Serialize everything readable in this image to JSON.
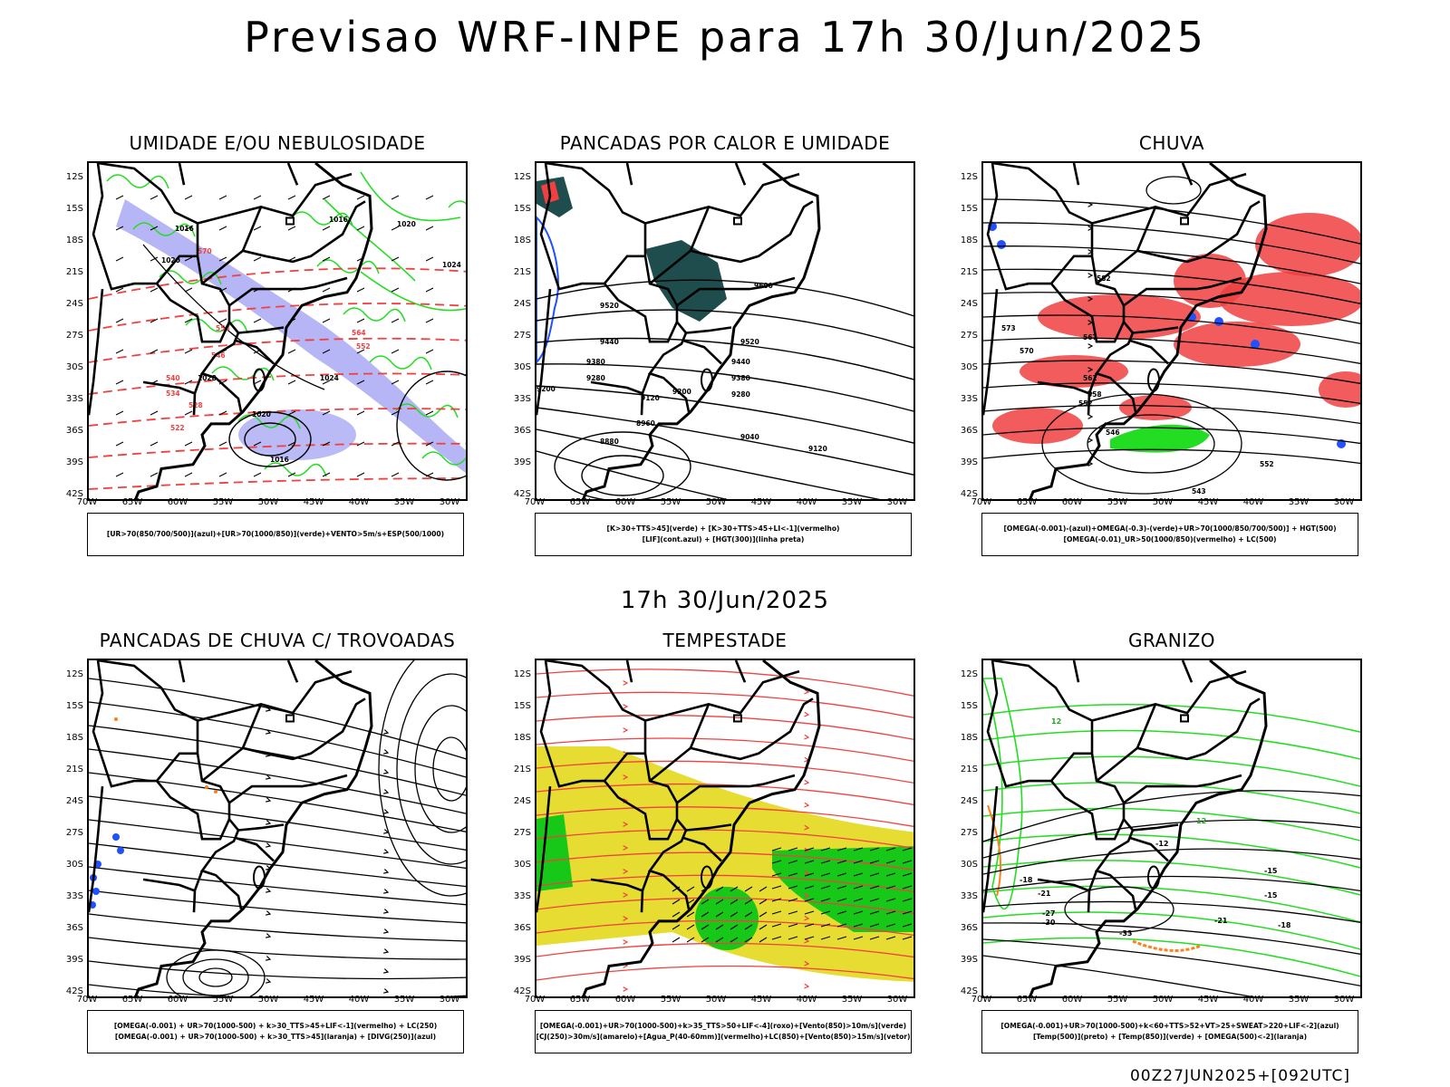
{
  "title": "Previsao WRF-INPE  para 17h 30/Jun/2025",
  "subtitle": "17h 30/Jun/2025",
  "footer": "00Z27JUN2025+[092UTC]",
  "axes": {
    "lat_labels": [
      "12S",
      "15S",
      "18S",
      "21S",
      "24S",
      "27S",
      "30S",
      "33S",
      "36S",
      "39S",
      "42S"
    ],
    "lon_labels": [
      "70W",
      "65W",
      "60W",
      "55W",
      "50W",
      "45W",
      "40W",
      "35W",
      "30W"
    ]
  },
  "colors": {
    "blue_shade": "#a9a9f5",
    "green": "#22dd22",
    "red": "#f04040",
    "yellow": "#e6dc32",
    "dark_teal": "#1f4d4d",
    "blue": "#2050ff",
    "orange": "#ff7f1a"
  },
  "panels": [
    {
      "title": "UMIDADE E/OU NEBULOSIDADE",
      "legend": [
        "[UR>70(850/700/500)](azul)+[UR>70(1000/850)](verde)+VENTO>5m/s+ESP(500/1000)"
      ],
      "labels": [
        "1016",
        "1020",
        "1024",
        "1028",
        "570",
        "564",
        "558",
        "552",
        "546",
        "540",
        "534",
        "528",
        "522"
      ]
    },
    {
      "title": "PANCADAS POR CALOR E UMIDADE",
      "legend": [
        "[K>30+TTS>45](verde) + [K>30+TTS>45+LI<-1](vermelho)",
        "[LIF](cont.azul) + [HGT(300)](linha preta)"
      ],
      "labels": [
        "9600",
        "9520",
        "9440",
        "9380",
        "9280",
        "9200",
        "9120",
        "9040",
        "8960",
        "8880"
      ]
    },
    {
      "title": "CHUVA",
      "legend": [
        "[OMEGA(-0.001)-(azul)+OMEGA(-0.3)-(verde)+UR>70(1000/850/700/500)] + HGT(500)",
        "[OMEGA(-0.01)_UR>50(1000/850)(vermelho) + LC(500)"
      ],
      "labels": [
        "582",
        "573",
        "570",
        "567",
        "561",
        "558",
        "552",
        "546",
        "543"
      ]
    },
    {
      "title": "PANCADAS DE CHUVA C/ TROVOADAS",
      "legend": [
        "[OMEGA(-0.001) + UR>70(1000-500) + k>30_TTS>45+LIF<-1](vermelho) + LC(250)",
        "[OMEGA(-0.001) + UR>70(1000-500) + k>30_TTS>45](laranja) + [DIVG(250)](azul)"
      ],
      "labels": []
    },
    {
      "title": "TEMPESTADE",
      "legend": [
        "[OMEGA(-0.001)+UR>70(1000-500)+k>35_TTS>50+LIF<-4](roxo)+[Vento(850)>10m/s](verde)",
        "[CJ(250)>30m/s](amarelo)+[Agua_P(40-60mm)](vermelho)+LC(850)+[Vento(850)>15m/s](vetor)"
      ],
      "labels": []
    },
    {
      "title": "GRANIZO",
      "legend": [
        "[OMEGA(-0.001)+UR>70(1000-500)+k<60+TTS>52+VT>25+SWEAT>220+LIF<-2](azul)",
        "[Temp(500)](preto) + [Temp(850)](verde) + [OMEGA(500)<-2](laranja)"
      ],
      "labels": [
        "12",
        "-12",
        "-15",
        "-18",
        "-21",
        "-27",
        "-30",
        "-33"
      ]
    }
  ]
}
